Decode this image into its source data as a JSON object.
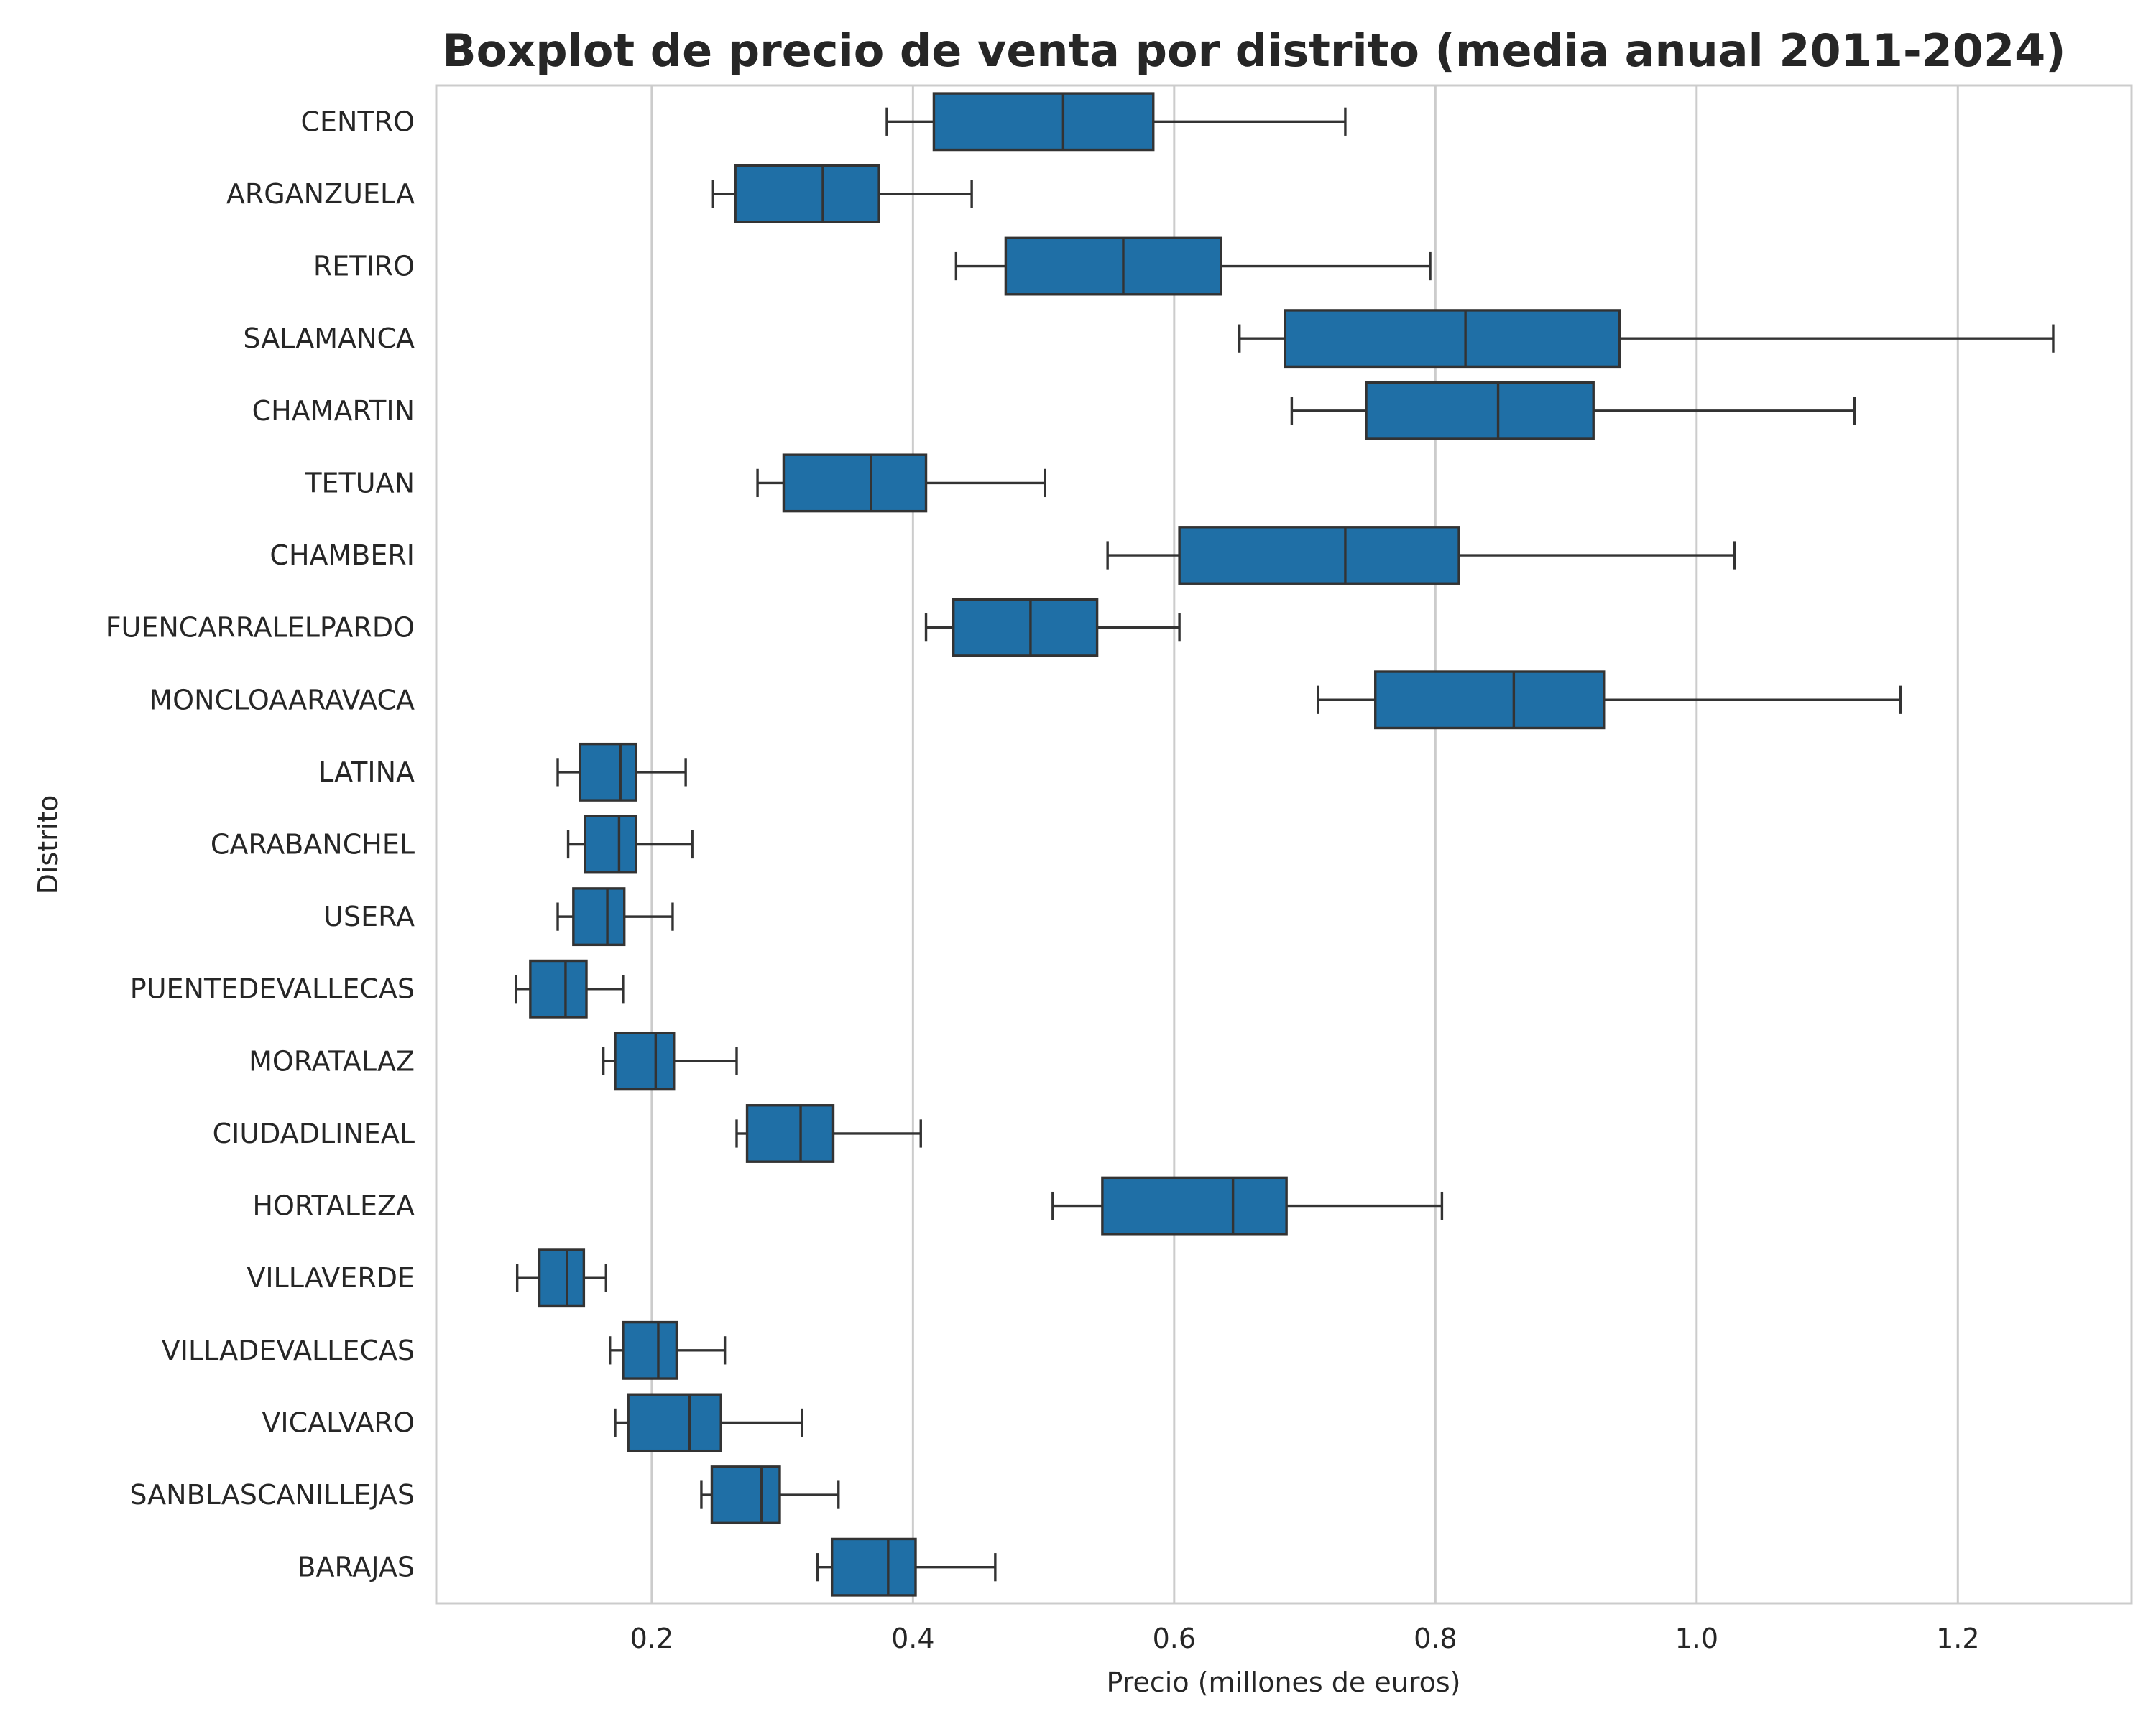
{
  "chart_data": {
    "type": "boxplot",
    "orientation": "horizontal",
    "title": "Boxplot de precio de venta por distrito (media anual 2011-2024)",
    "xlabel": "Precio (millones de euros)",
    "ylabel": "Distrito",
    "xlim": [
      0.035,
      1.333
    ],
    "xticks": [
      0.2,
      0.4,
      0.6,
      0.8,
      1.0,
      1.2
    ],
    "xtick_labels": [
      "0.2",
      "0.4",
      "0.6",
      "0.8",
      "1.0",
      "1.2"
    ],
    "grid": "vertical",
    "colors": {
      "box": "#1f6fa6",
      "edge": "#333333",
      "grid": "#cccccc",
      "text": "#262626"
    },
    "categories": [
      "CENTRO",
      "ARGANZUELA",
      "RETIRO",
      "SALAMANCA",
      "CHAMARTIN",
      "TETUAN",
      "CHAMBERI",
      "FUENCARRALELPARDO",
      "MONCLOAARAVACA",
      "LATINA",
      "CARABANCHEL",
      "USERA",
      "PUENTEDEVALLECAS",
      "MORATALAZ",
      "CIUDADLINEAL",
      "HORTALEZA",
      "VILLAVERDE",
      "VILLADEVALLECAS",
      "VICALVARO",
      "SANBLASCANILLEJAS",
      "BARAJAS"
    ],
    "boxes": [
      {
        "whislo": 0.38,
        "q1": 0.416,
        "med": 0.515,
        "q3": 0.584,
        "whishi": 0.731
      },
      {
        "whislo": 0.247,
        "q1": 0.264,
        "med": 0.331,
        "q3": 0.374,
        "whishi": 0.445
      },
      {
        "whislo": 0.433,
        "q1": 0.471,
        "med": 0.561,
        "q3": 0.636,
        "whishi": 0.796
      },
      {
        "whislo": 0.65,
        "q1": 0.685,
        "med": 0.823,
        "q3": 0.941,
        "whishi": 1.273
      },
      {
        "whislo": 0.69,
        "q1": 0.747,
        "med": 0.848,
        "q3": 0.921,
        "whishi": 1.121
      },
      {
        "whislo": 0.281,
        "q1": 0.301,
        "med": 0.368,
        "q3": 0.41,
        "whishi": 0.501
      },
      {
        "whislo": 0.549,
        "q1": 0.604,
        "med": 0.731,
        "q3": 0.818,
        "whishi": 1.029
      },
      {
        "whislo": 0.41,
        "q1": 0.431,
        "med": 0.49,
        "q3": 0.541,
        "whishi": 0.604
      },
      {
        "whislo": 0.71,
        "q1": 0.754,
        "med": 0.86,
        "q3": 0.929,
        "whishi": 1.156
      },
      {
        "whislo": 0.128,
        "q1": 0.145,
        "med": 0.176,
        "q3": 0.188,
        "whishi": 0.226
      },
      {
        "whislo": 0.136,
        "q1": 0.149,
        "med": 0.175,
        "q3": 0.188,
        "whishi": 0.231
      },
      {
        "whislo": 0.128,
        "q1": 0.14,
        "med": 0.166,
        "q3": 0.179,
        "whishi": 0.216
      },
      {
        "whislo": 0.096,
        "q1": 0.107,
        "med": 0.134,
        "q3": 0.15,
        "whishi": 0.178
      },
      {
        "whislo": 0.163,
        "q1": 0.172,
        "med": 0.203,
        "q3": 0.217,
        "whishi": 0.265
      },
      {
        "whislo": 0.265,
        "q1": 0.273,
        "med": 0.314,
        "q3": 0.339,
        "whishi": 0.406
      },
      {
        "whislo": 0.507,
        "q1": 0.545,
        "med": 0.645,
        "q3": 0.686,
        "whishi": 0.805
      },
      {
        "whislo": 0.097,
        "q1": 0.114,
        "med": 0.135,
        "q3": 0.148,
        "whishi": 0.165
      },
      {
        "whislo": 0.168,
        "q1": 0.178,
        "med": 0.205,
        "q3": 0.219,
        "whishi": 0.256
      },
      {
        "whislo": 0.172,
        "q1": 0.182,
        "med": 0.229,
        "q3": 0.253,
        "whishi": 0.315
      },
      {
        "whislo": 0.238,
        "q1": 0.246,
        "med": 0.284,
        "q3": 0.298,
        "whishi": 0.343
      },
      {
        "whislo": 0.327,
        "q1": 0.338,
        "med": 0.381,
        "q3": 0.402,
        "whishi": 0.463
      }
    ]
  }
}
